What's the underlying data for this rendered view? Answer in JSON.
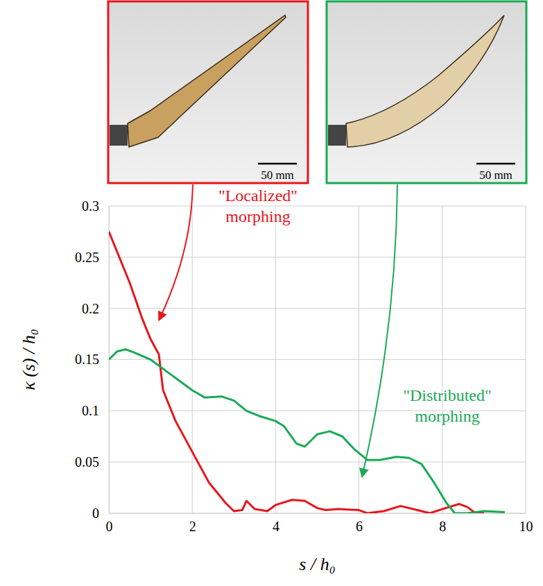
{
  "chart_data": {
    "type": "line",
    "x_label": "s / h₀",
    "y_label": "κ (s) / h₀",
    "xlim": [
      0,
      10
    ],
    "xticks": [
      0,
      2,
      4,
      6,
      8,
      10
    ],
    "ylim": [
      0,
      0.3
    ],
    "yticks": [
      0,
      0.05,
      0.1,
      0.15,
      0.2,
      0.25,
      0.3
    ],
    "grid": true,
    "images": [
      {
        "scale_bar": "50 mm",
        "color": "#e8151b"
      },
      {
        "scale_bar": "50 mm",
        "color": "#1aaa55"
      }
    ],
    "annotations": [
      {
        "lines": [
          "\"Localized\"",
          "morphing"
        ],
        "color": "#e8151b"
      },
      {
        "lines": [
          "\"Distributed\"",
          "morphing"
        ],
        "color": "#1aaa55"
      }
    ],
    "series": [
      {
        "color": "#e8151b",
        "x": [
          0,
          0.2,
          0.5,
          0.8,
          1.0,
          1.2,
          1.3,
          1.6,
          2.0,
          2.4,
          2.8,
          3.0,
          3.2,
          3.3,
          3.5,
          3.8,
          4.0,
          4.4,
          4.7,
          5.0,
          5.2,
          5.5,
          6.0,
          6.2,
          6.6,
          7.0,
          7.4,
          7.7,
          8.0,
          8.4,
          8.6,
          8.8,
          9.0
        ],
        "values": [
          0.275,
          0.255,
          0.225,
          0.19,
          0.17,
          0.155,
          0.12,
          0.09,
          0.06,
          0.03,
          0.01,
          0.002,
          0.003,
          0.012,
          0.004,
          0.002,
          0.008,
          0.013,
          0.012,
          0.005,
          0.003,
          0.004,
          0.003,
          0.0,
          0.002,
          0.007,
          0.003,
          0.0,
          0.004,
          0.009,
          0.006,
          0.0,
          0.001
        ]
      },
      {
        "color": "#1aaa55",
        "x": [
          0,
          0.2,
          0.4,
          0.6,
          1.0,
          1.5,
          2.0,
          2.3,
          2.7,
          3.0,
          3.3,
          3.6,
          4.0,
          4.2,
          4.5,
          4.7,
          5.0,
          5.3,
          5.6,
          5.9,
          6.2,
          6.5,
          6.9,
          7.2,
          7.5,
          7.8,
          8.1,
          8.3,
          8.6,
          9.0,
          9.5
        ],
        "values": [
          0.15,
          0.158,
          0.16,
          0.157,
          0.15,
          0.135,
          0.12,
          0.113,
          0.114,
          0.11,
          0.1,
          0.095,
          0.09,
          0.085,
          0.068,
          0.065,
          0.077,
          0.08,
          0.075,
          0.062,
          0.052,
          0.052,
          0.055,
          0.054,
          0.048,
          0.03,
          0.01,
          0.0,
          0.0,
          0.002,
          0.001
        ]
      }
    ]
  }
}
